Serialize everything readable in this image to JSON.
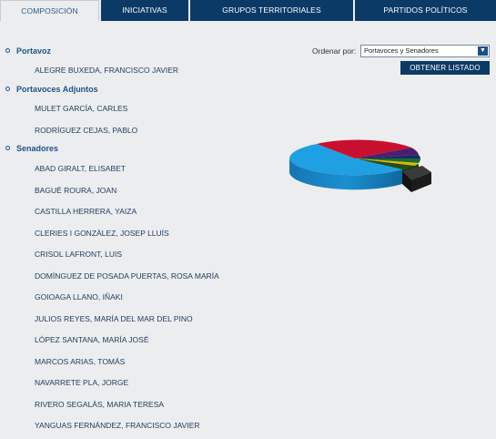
{
  "tabs": [
    {
      "label": "COMPOSICIÓN",
      "active": true
    },
    {
      "label": "INICIATIVAS",
      "active": false
    },
    {
      "label": "GRUPOS TERRITORIALES",
      "active": false
    },
    {
      "label": "PARTIDOS POLÍTICOS",
      "active": false
    }
  ],
  "sections": {
    "portavoz": {
      "title": "Portavoz",
      "members": [
        "ALEGRE BUXEDA, FRANCISCO JAVIER"
      ]
    },
    "adjuntos": {
      "title": "Portavoces Adjuntos",
      "members": [
        "MULET GARCÍA, CARLES",
        "RODRÍGUEZ CEJAS, PABLO"
      ]
    },
    "senadores": {
      "title": "Senadores",
      "members": [
        "ABAD GIRALT, ELISABET",
        "BAGUÉ ROURA, JOAN",
        "CASTILLA HERRERA, YAIZA",
        "CLERIES I GONZÀLEZ, JOSEP LLUÍS",
        "CRISOL LAFRONT, LUIS",
        "DOMÍNGUEZ DE POSADA PUERTAS, ROSA MARÍA",
        "GOIOAGA LLANO, IÑAKI",
        "JULIOS REYES, MARÍA DEL MAR DEL PINO",
        "LÓPEZ SANTANA, MARÍA JOSÉ",
        "MARCOS ARIAS, TOMÁS",
        "NAVARRETE PLA, JORGE",
        "RIVERO SEGALÀS, MARIA TERESA",
        "YANGUAS FERNÁNDEZ, FRANCISCO JAVIER"
      ]
    }
  },
  "controls": {
    "order_label": "Ordenar por:",
    "order_value": "Portavoces y Senadores",
    "list_button": "OBTENER LISTADO"
  },
  "colors": {
    "tab_bg": "#0c3a66",
    "accent": "#1f5386"
  },
  "pie_chart": {
    "slices": [
      {
        "color": "#1ea0e3",
        "share": 0.58
      },
      {
        "color": "#c8102e",
        "share": 0.27
      },
      {
        "color": "#4b1f6b",
        "share": 0.06
      },
      {
        "color": "#1a6e2e",
        "share": 0.02
      },
      {
        "color": "#e0b800",
        "share": 0.01
      },
      {
        "color": "#2a2a2a",
        "share": 0.06
      }
    ]
  }
}
